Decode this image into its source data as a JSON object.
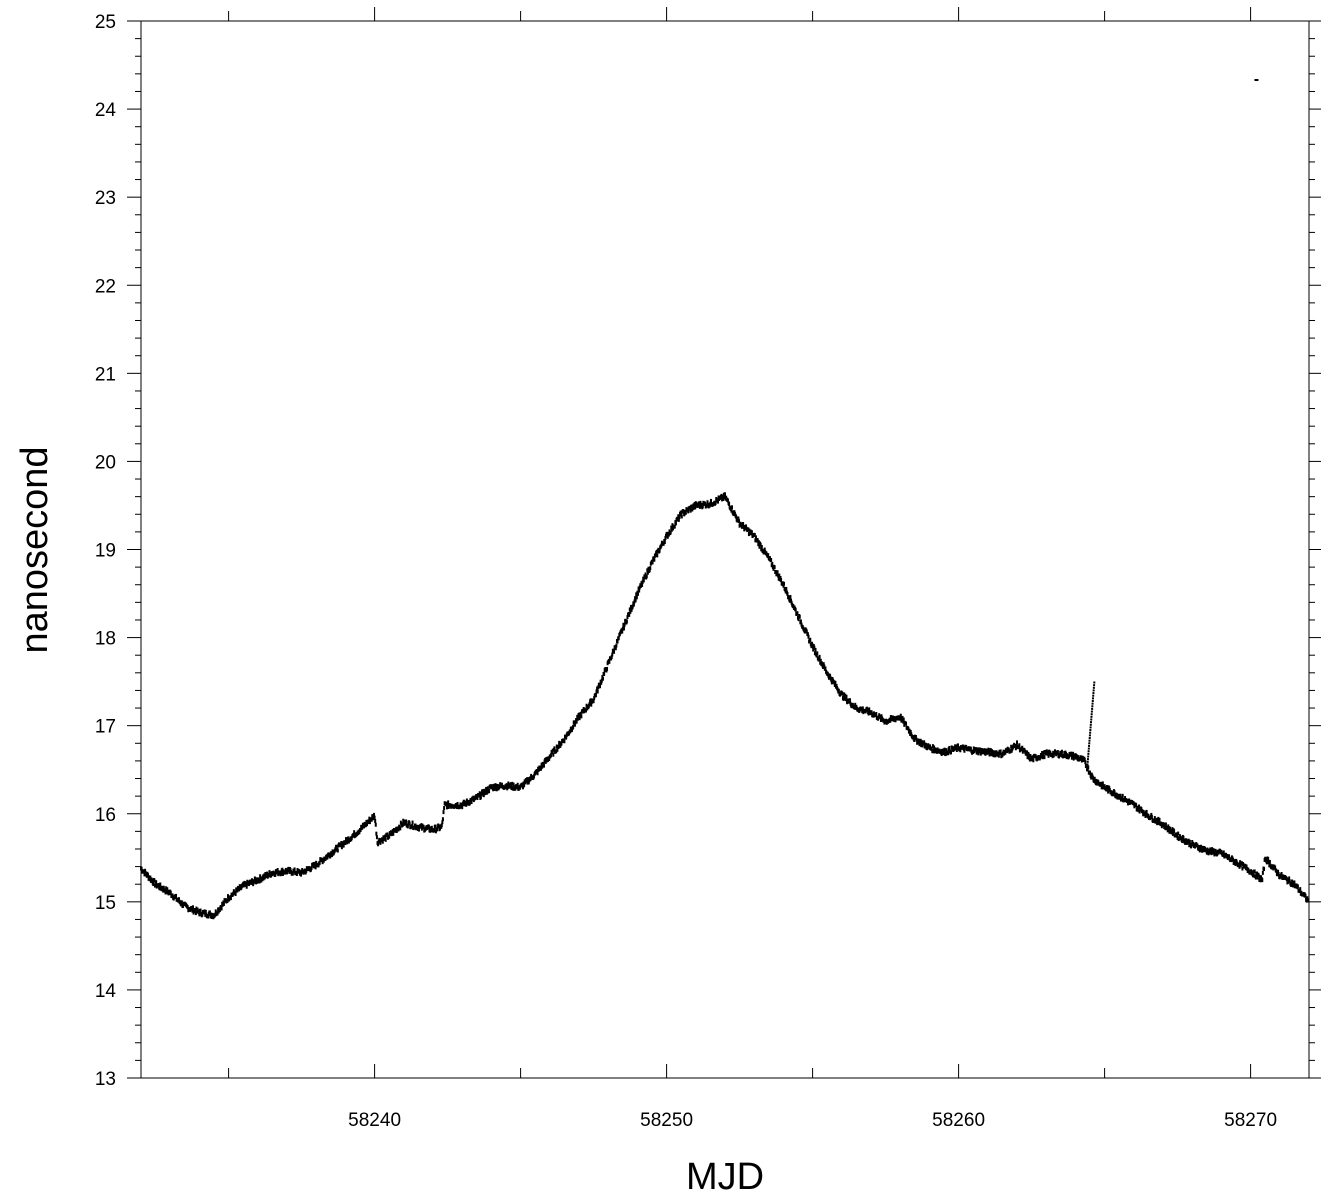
{
  "chart_data": {
    "type": "scatter",
    "title": "",
    "xlabel": "MJD",
    "ylabel": "nanosecond",
    "xlim": [
      58232,
      58272
    ],
    "ylim": [
      13,
      25
    ],
    "x_ticks": [
      58240,
      58250,
      58260,
      58270
    ],
    "y_ticks": [
      13,
      14,
      15,
      16,
      17,
      18,
      19,
      20,
      21,
      22,
      23,
      24,
      25
    ],
    "grid": false,
    "legend": "none",
    "marker_color": "#000000",
    "series": [
      {
        "points": [
          [
            58232.0,
            15.38
          ],
          [
            58232.5,
            15.2
          ],
          [
            58233.0,
            15.1
          ],
          [
            58233.5,
            14.95
          ],
          [
            58234.0,
            14.88
          ],
          [
            58234.5,
            14.85
          ],
          [
            58235.0,
            15.05
          ],
          [
            58235.5,
            15.18
          ],
          [
            58236.0,
            15.25
          ],
          [
            58236.5,
            15.33
          ],
          [
            58237.0,
            15.35
          ],
          [
            58237.5,
            15.33
          ],
          [
            58238.0,
            15.42
          ],
          [
            58238.5,
            15.55
          ],
          [
            58239.0,
            15.68
          ],
          [
            58239.5,
            15.82
          ],
          [
            58240.0,
            15.98
          ],
          [
            58240.1,
            15.68
          ],
          [
            58240.5,
            15.75
          ],
          [
            58241.0,
            15.9
          ],
          [
            58241.5,
            15.85
          ],
          [
            58242.0,
            15.82
          ],
          [
            58242.3,
            15.85
          ],
          [
            58242.4,
            16.1
          ],
          [
            58243.0,
            16.1
          ],
          [
            58243.5,
            16.18
          ],
          [
            58244.0,
            16.3
          ],
          [
            58244.5,
            16.32
          ],
          [
            58245.0,
            16.3
          ],
          [
            58245.5,
            16.45
          ],
          [
            58246.0,
            16.65
          ],
          [
            58246.5,
            16.85
          ],
          [
            58247.0,
            17.1
          ],
          [
            58247.5,
            17.3
          ],
          [
            58248.0,
            17.7
          ],
          [
            58248.5,
            18.1
          ],
          [
            58249.0,
            18.5
          ],
          [
            58249.5,
            18.85
          ],
          [
            58250.0,
            19.15
          ],
          [
            58250.5,
            19.4
          ],
          [
            58251.0,
            19.5
          ],
          [
            58251.5,
            19.52
          ],
          [
            58252.0,
            19.6
          ],
          [
            58252.5,
            19.3
          ],
          [
            58253.0,
            19.15
          ],
          [
            58253.5,
            18.9
          ],
          [
            58254.0,
            18.6
          ],
          [
            58254.5,
            18.25
          ],
          [
            58255.0,
            17.9
          ],
          [
            58255.5,
            17.6
          ],
          [
            58256.0,
            17.35
          ],
          [
            58256.5,
            17.2
          ],
          [
            58257.0,
            17.15
          ],
          [
            58257.5,
            17.05
          ],
          [
            58258.0,
            17.1
          ],
          [
            58258.5,
            16.85
          ],
          [
            58259.0,
            16.75
          ],
          [
            58259.5,
            16.7
          ],
          [
            58260.0,
            16.75
          ],
          [
            58260.5,
            16.72
          ],
          [
            58261.0,
            16.7
          ],
          [
            58261.5,
            16.68
          ],
          [
            58262.0,
            16.78
          ],
          [
            58262.5,
            16.62
          ],
          [
            58263.0,
            16.68
          ],
          [
            58263.5,
            16.68
          ],
          [
            58264.0,
            16.65
          ],
          [
            58264.3,
            16.6
          ],
          [
            58264.6,
            16.4
          ],
          [
            58265.0,
            16.3
          ],
          [
            58265.5,
            16.2
          ],
          [
            58266.0,
            16.1
          ],
          [
            58266.5,
            15.98
          ],
          [
            58267.0,
            15.88
          ],
          [
            58267.5,
            15.75
          ],
          [
            58268.0,
            15.65
          ],
          [
            58268.5,
            15.58
          ],
          [
            58269.0,
            15.55
          ],
          [
            58269.5,
            15.45
          ],
          [
            58270.0,
            15.35
          ],
          [
            58270.4,
            15.25
          ],
          [
            58270.5,
            15.5
          ],
          [
            58271.0,
            15.3
          ],
          [
            58271.5,
            15.2
          ],
          [
            58272.0,
            15.0
          ]
        ]
      }
    ],
    "spike": {
      "x": 58264.4,
      "y_from": 16.5,
      "y_to": 17.5
    },
    "outlier": [
      58270.2,
      24.33
    ]
  }
}
